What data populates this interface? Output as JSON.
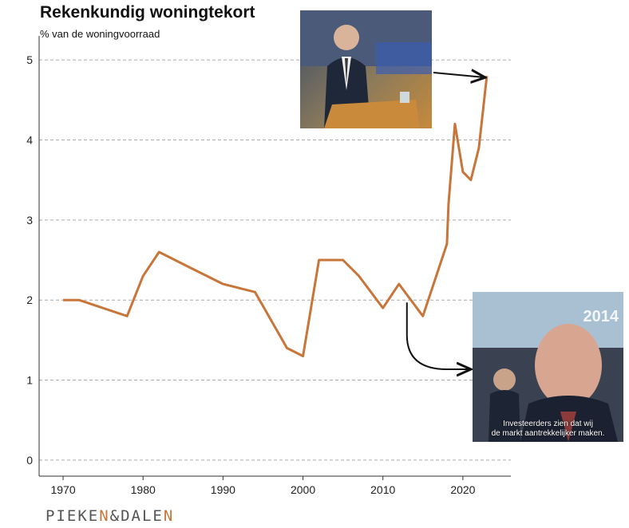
{
  "chart_data": {
    "type": "line",
    "title": "Rekenkundig woningtekort",
    "subtitle": "% van de woningvoorraad",
    "xlabel": "",
    "ylabel": "",
    "xlim": [
      1967,
      2026
    ],
    "ylim": [
      -0.2,
      5.3
    ],
    "xticks": [
      1970,
      1980,
      1990,
      2000,
      2010,
      2020
    ],
    "yticks": [
      0,
      1,
      2,
      3,
      4,
      5
    ],
    "grid": "horizontal dashed",
    "series": [
      {
        "color": "#c8753a",
        "points": [
          {
            "x": 1970,
            "y": 2.0
          },
          {
            "x": 1972,
            "y": 2.0
          },
          {
            "x": 1978,
            "y": 1.8
          },
          {
            "x": 1980,
            "y": 2.3
          },
          {
            "x": 1982,
            "y": 2.6
          },
          {
            "x": 1986,
            "y": 2.4
          },
          {
            "x": 1990,
            "y": 2.2
          },
          {
            "x": 1994,
            "y": 2.1
          },
          {
            "x": 1998,
            "y": 1.4
          },
          {
            "x": 2000,
            "y": 1.3
          },
          {
            "x": 2002,
            "y": 2.5
          },
          {
            "x": 2005,
            "y": 2.5
          },
          {
            "x": 2007,
            "y": 2.3
          },
          {
            "x": 2010,
            "y": 1.9
          },
          {
            "x": 2012,
            "y": 2.2
          },
          {
            "x": 2015,
            "y": 1.8
          },
          {
            "x": 2018,
            "y": 2.7
          },
          {
            "x": 2018.2,
            "y": 3.2
          },
          {
            "x": 2019,
            "y": 4.2
          },
          {
            "x": 2020,
            "y": 3.6
          },
          {
            "x": 2021,
            "y": 3.5
          },
          {
            "x": 2022,
            "y": 3.9
          },
          {
            "x": 2023,
            "y": 4.8
          }
        ]
      }
    ]
  },
  "annotations": {
    "photo_top": {
      "description": "photo of man in suit at parliament lectern",
      "points_to": {
        "x": 2023,
        "y": 4.8
      }
    },
    "photo_bottom": {
      "description": "video still of man interviewed",
      "stamp": "2014",
      "caption_line1": "Investeerders zien dat wij",
      "caption_line2": "de markt aantrekkelijker maken.",
      "points_to": {
        "x": 2013,
        "y": 2.0
      }
    }
  },
  "logo": {
    "part1": "PIEKE",
    "part1_accent": "N",
    "part2": "&DALE",
    "part2_accent": "N"
  },
  "colors": {
    "line": "#c8753a",
    "grid": "#aaaaaa",
    "arrow": "#111111"
  }
}
